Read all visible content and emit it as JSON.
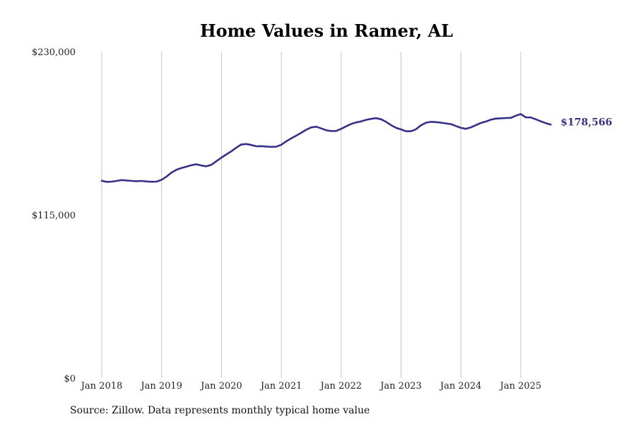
{
  "chart_data": {
    "type": "line",
    "title": "Home Values in Ramer, AL",
    "xlabel": "",
    "ylabel": "",
    "ylim": [
      0,
      230000
    ],
    "x_range": [
      "2018-01",
      "2025-07"
    ],
    "y_ticks": [
      {
        "value": 0,
        "label": "$0"
      },
      {
        "value": 115000,
        "label": "$115,000"
      },
      {
        "value": 230000,
        "label": "$230,000"
      }
    ],
    "x_ticks": [
      {
        "date": "2018-01",
        "label": "Jan 2018"
      },
      {
        "date": "2019-01",
        "label": "Jan 2019"
      },
      {
        "date": "2020-01",
        "label": "Jan 2020"
      },
      {
        "date": "2021-01",
        "label": "Jan 2021"
      },
      {
        "date": "2022-01",
        "label": "Jan 2022"
      },
      {
        "date": "2023-01",
        "label": "Jan 2023"
      },
      {
        "date": "2024-01",
        "label": "Jan 2024"
      },
      {
        "date": "2025-01",
        "label": "Jan 2025"
      }
    ],
    "grid": {
      "vertical": true,
      "horizontal": false
    },
    "line_color": "#35308a",
    "series": [
      {
        "values": [
          {
            "x": "2018-01",
            "y": 139000
          },
          {
            "x": "2018-02",
            "y": 138200
          },
          {
            "x": "2018-03",
            "y": 138400
          },
          {
            "x": "2018-04",
            "y": 138900
          },
          {
            "x": "2018-05",
            "y": 139500
          },
          {
            "x": "2018-06",
            "y": 139200
          },
          {
            "x": "2018-07",
            "y": 138900
          },
          {
            "x": "2018-08",
            "y": 138700
          },
          {
            "x": "2018-09",
            "y": 138900
          },
          {
            "x": "2018-10",
            "y": 138500
          },
          {
            "x": "2018-11",
            "y": 138300
          },
          {
            "x": "2018-12",
            "y": 138400
          },
          {
            "x": "2019-01",
            "y": 139700
          },
          {
            "x": "2019-02",
            "y": 142000
          },
          {
            "x": "2019-03",
            "y": 144800
          },
          {
            "x": "2019-04",
            "y": 146800
          },
          {
            "x": "2019-05",
            "y": 148000
          },
          {
            "x": "2019-06",
            "y": 149000
          },
          {
            "x": "2019-07",
            "y": 150000
          },
          {
            "x": "2019-08",
            "y": 150600
          },
          {
            "x": "2019-09",
            "y": 149700
          },
          {
            "x": "2019-10",
            "y": 149200
          },
          {
            "x": "2019-11",
            "y": 150300
          },
          {
            "x": "2019-12",
            "y": 152800
          },
          {
            "x": "2020-01",
            "y": 155300
          },
          {
            "x": "2020-02",
            "y": 157600
          },
          {
            "x": "2020-03",
            "y": 159800
          },
          {
            "x": "2020-04",
            "y": 162400
          },
          {
            "x": "2020-05",
            "y": 164600
          },
          {
            "x": "2020-06",
            "y": 164900
          },
          {
            "x": "2020-07",
            "y": 164200
          },
          {
            "x": "2020-08",
            "y": 163300
          },
          {
            "x": "2020-09",
            "y": 163400
          },
          {
            "x": "2020-10",
            "y": 163100
          },
          {
            "x": "2020-11",
            "y": 162900
          },
          {
            "x": "2020-12",
            "y": 163000
          },
          {
            "x": "2021-01",
            "y": 164400
          },
          {
            "x": "2021-02",
            "y": 166800
          },
          {
            "x": "2021-03",
            "y": 168900
          },
          {
            "x": "2021-04",
            "y": 170800
          },
          {
            "x": "2021-05",
            "y": 172800
          },
          {
            "x": "2021-06",
            "y": 175000
          },
          {
            "x": "2021-07",
            "y": 176600
          },
          {
            "x": "2021-08",
            "y": 177100
          },
          {
            "x": "2021-09",
            "y": 175900
          },
          {
            "x": "2021-10",
            "y": 174600
          },
          {
            "x": "2021-11",
            "y": 174000
          },
          {
            "x": "2021-12",
            "y": 174100
          },
          {
            "x": "2022-01",
            "y": 175600
          },
          {
            "x": "2022-02",
            "y": 177400
          },
          {
            "x": "2022-03",
            "y": 179000
          },
          {
            "x": "2022-04",
            "y": 180100
          },
          {
            "x": "2022-05",
            "y": 180800
          },
          {
            "x": "2022-06",
            "y": 181900
          },
          {
            "x": "2022-07",
            "y": 182600
          },
          {
            "x": "2022-08",
            "y": 183100
          },
          {
            "x": "2022-09",
            "y": 182300
          },
          {
            "x": "2022-10",
            "y": 180500
          },
          {
            "x": "2022-11",
            "y": 178200
          },
          {
            "x": "2022-12",
            "y": 176300
          },
          {
            "x": "2023-01",
            "y": 175200
          },
          {
            "x": "2023-02",
            "y": 173900
          },
          {
            "x": "2023-03",
            "y": 173900
          },
          {
            "x": "2023-04",
            "y": 175300
          },
          {
            "x": "2023-05",
            "y": 178100
          },
          {
            "x": "2023-06",
            "y": 179900
          },
          {
            "x": "2023-07",
            "y": 180500
          },
          {
            "x": "2023-08",
            "y": 180300
          },
          {
            "x": "2023-09",
            "y": 179900
          },
          {
            "x": "2023-10",
            "y": 179400
          },
          {
            "x": "2023-11",
            "y": 178900
          },
          {
            "x": "2023-12",
            "y": 177600
          },
          {
            "x": "2024-01",
            "y": 176300
          },
          {
            "x": "2024-02",
            "y": 175600
          },
          {
            "x": "2024-03",
            "y": 176600
          },
          {
            "x": "2024-04",
            "y": 178200
          },
          {
            "x": "2024-05",
            "y": 179700
          },
          {
            "x": "2024-06",
            "y": 180700
          },
          {
            "x": "2024-07",
            "y": 182000
          },
          {
            "x": "2024-08",
            "y": 182800
          },
          {
            "x": "2024-09",
            "y": 183000
          },
          {
            "x": "2024-10",
            "y": 183200
          },
          {
            "x": "2024-11",
            "y": 183300
          },
          {
            "x": "2024-12",
            "y": 184800
          },
          {
            "x": "2025-01",
            "y": 186000
          },
          {
            "x": "2025-02",
            "y": 183700
          },
          {
            "x": "2025-03",
            "y": 183600
          },
          {
            "x": "2025-04",
            "y": 182300
          },
          {
            "x": "2025-05",
            "y": 180900
          },
          {
            "x": "2025-06",
            "y": 179600
          },
          {
            "x": "2025-07",
            "y": 178566
          }
        ]
      }
    ],
    "end_label": "$178,566"
  },
  "source": "Source: Zillow. Data represents monthly typical home value"
}
